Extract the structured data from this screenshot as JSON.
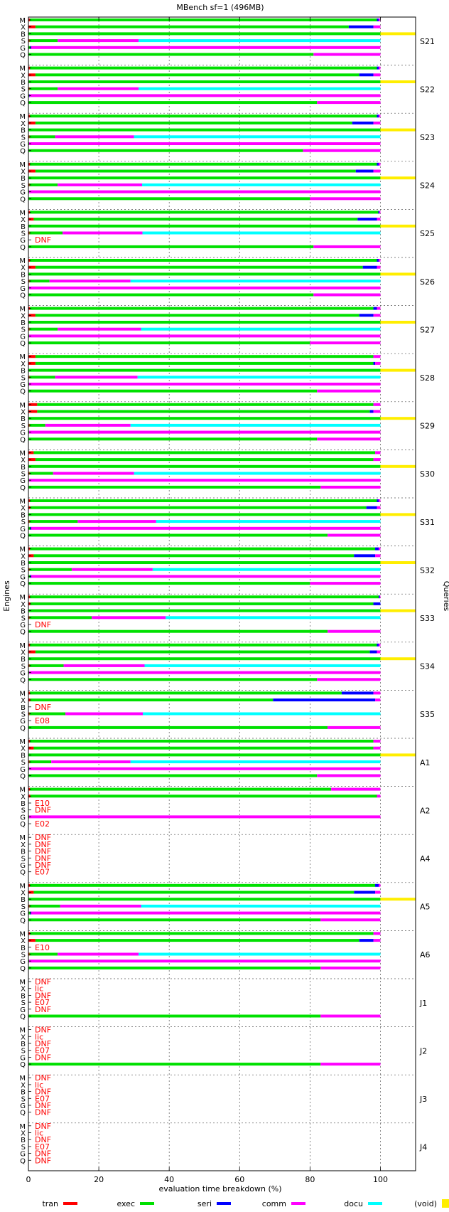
{
  "chart_data": {
    "type": "bar",
    "orientation": "horizontal-stacked",
    "title": "MBench sf=1 (496MB)",
    "xlabel": "evaluation time breakdown (%)",
    "ylabel_left": "Engines",
    "ylabel_right": "Queries",
    "xlim": [
      0,
      110
    ],
    "xticks": [
      0,
      20,
      40,
      60,
      80,
      100
    ],
    "grid": true,
    "legend_position": "bottom",
    "engine_labels": [
      "M",
      "X",
      "B",
      "S",
      "G",
      "Q"
    ],
    "components": [
      {
        "key": "tran",
        "label": "tran",
        "color": "#ff0000"
      },
      {
        "key": "exec",
        "label": "exec",
        "color": "#00e000"
      },
      {
        "key": "seri",
        "label": "seri",
        "color": "#0000ff"
      },
      {
        "key": "comm",
        "label": "comm",
        "color": "#ff00ff"
      },
      {
        "key": "docu",
        "label": "docu",
        "color": "#00ffff"
      },
      {
        "key": "void",
        "label": "(void)",
        "color": "#ffee00"
      }
    ],
    "void_range": [
      100,
      110
    ],
    "queries": [
      {
        "name": "S21",
        "rows": {
          "M": [
            0.4,
            98.6,
            0.5,
            0.5,
            0,
            0
          ],
          "X": [
            2,
            89,
            7,
            2,
            0,
            0
          ],
          "B": [
            0,
            100,
            0,
            0,
            0,
            10
          ],
          "S": [
            0.3,
            8,
            0,
            23,
            68.7,
            0
          ],
          "G": [
            0,
            0.5,
            0.3,
            99.2,
            0,
            0
          ],
          "Q": [
            0,
            81,
            0,
            19,
            0,
            0
          ]
        }
      },
      {
        "name": "S22",
        "rows": {
          "M": [
            0.4,
            98.6,
            0.5,
            0.5,
            0,
            0
          ],
          "X": [
            2,
            92,
            4,
            2,
            0,
            0
          ],
          "B": [
            0,
            100,
            0,
            0,
            0,
            10
          ],
          "S": [
            0.3,
            8,
            0,
            23,
            68.7,
            0
          ],
          "G": [
            0,
            0.2,
            0.1,
            99.7,
            0,
            0
          ],
          "Q": [
            0,
            82,
            0,
            18,
            0,
            0
          ]
        }
      },
      {
        "name": "S23",
        "rows": {
          "M": [
            0.4,
            98.6,
            0.5,
            0.5,
            0,
            0
          ],
          "X": [
            2,
            90,
            6,
            2,
            0,
            0
          ],
          "B": [
            0,
            100,
            0,
            0,
            0,
            10
          ],
          "S": [
            0.3,
            7.3,
            0,
            22.4,
            70,
            0
          ],
          "G": [
            0,
            0.2,
            0,
            99.8,
            0,
            0
          ],
          "Q": [
            0,
            78,
            0,
            22,
            0,
            0
          ]
        }
      },
      {
        "name": "S24",
        "rows": {
          "M": [
            0.4,
            98.6,
            0.5,
            0.5,
            0,
            0
          ],
          "X": [
            2,
            91,
            5,
            2,
            0,
            0
          ],
          "B": [
            0,
            100,
            0,
            0,
            0,
            10
          ],
          "S": [
            0.3,
            8,
            0,
            24,
            67.7,
            0
          ],
          "G": [
            0,
            0.2,
            0,
            99.8,
            0,
            0
          ],
          "Q": [
            0,
            80,
            0,
            20,
            0,
            0
          ]
        }
      },
      {
        "name": "S25",
        "rows": {
          "M": [
            0.4,
            99,
            0.3,
            0.3,
            0,
            0
          ],
          "X": [
            1.5,
            92,
            5.5,
            1,
            0,
            0
          ],
          "B": [
            0,
            100,
            0,
            0,
            0,
            10
          ],
          "S": [
            0.3,
            9.4,
            0,
            22.7,
            67.6,
            0
          ],
          "G": null,
          "Q": [
            0,
            81,
            0,
            19,
            0,
            0
          ]
        }
      },
      {
        "name": "S26",
        "rows": {
          "M": [
            0.4,
            98.6,
            0.5,
            0.5,
            0,
            0
          ],
          "X": [
            2,
            93,
            4,
            1,
            0,
            0
          ],
          "B": [
            0,
            100,
            0,
            0,
            0,
            10
          ],
          "S": [
            0.3,
            5.7,
            0,
            23,
            71,
            0
          ],
          "G": [
            0,
            0.2,
            0,
            99.8,
            0,
            0
          ],
          "Q": [
            0,
            81,
            0,
            19,
            0,
            0
          ]
        }
      },
      {
        "name": "S27",
        "rows": {
          "M": [
            0.4,
            97.6,
            1,
            1,
            0,
            0
          ],
          "X": [
            2,
            92,
            4,
            2,
            0,
            0
          ],
          "B": [
            0,
            100,
            0,
            0,
            0,
            10
          ],
          "S": [
            0.3,
            8,
            0,
            23.7,
            68,
            0
          ],
          "G": [
            0,
            0.2,
            0,
            99.8,
            0,
            0
          ],
          "Q": [
            0,
            80,
            0,
            20,
            0,
            0
          ]
        }
      },
      {
        "name": "S28",
        "rows": {
          "M": [
            2,
            96,
            0,
            2,
            0,
            0
          ],
          "X": [
            2,
            96,
            0.5,
            1.5,
            0,
            0
          ],
          "B": [
            0,
            100,
            0,
            0,
            0,
            10
          ],
          "S": [
            0.3,
            7.3,
            0,
            23.4,
            69,
            0
          ],
          "G": [
            0,
            0.2,
            0,
            99.8,
            0,
            0
          ],
          "Q": [
            0,
            82,
            0,
            18,
            0,
            0
          ]
        }
      },
      {
        "name": "S29",
        "rows": {
          "M": [
            2.5,
            95.5,
            0,
            2,
            0,
            0
          ],
          "X": [
            2.5,
            94.5,
            1,
            2,
            0,
            0
          ],
          "B": [
            0,
            100,
            0,
            0,
            0,
            10
          ],
          "S": [
            0.3,
            4.5,
            0,
            24.2,
            71,
            0
          ],
          "G": [
            0,
            0.2,
            0,
            99.8,
            0,
            0
          ],
          "Q": [
            0,
            82,
            0,
            18,
            0,
            0
          ]
        }
      },
      {
        "name": "S30",
        "rows": {
          "M": [
            1.5,
            97,
            0,
            1.5,
            0,
            0
          ],
          "X": [
            2,
            96,
            0,
            2,
            0,
            0
          ],
          "B": [
            0,
            100,
            0,
            0,
            0,
            10
          ],
          "S": [
            0.3,
            6.7,
            0,
            23,
            70,
            0
          ],
          "G": [
            0,
            0.2,
            0,
            99.8,
            0,
            0
          ],
          "Q": [
            0,
            83,
            0,
            17,
            0,
            0
          ]
        }
      },
      {
        "name": "S31",
        "rows": {
          "M": [
            0.4,
            98.6,
            0.5,
            0.5,
            0,
            0
          ],
          "X": [
            0.5,
            95.5,
            3,
            1,
            0,
            0
          ],
          "B": [
            0,
            100,
            0,
            0,
            0,
            10
          ],
          "S": [
            0.3,
            13.7,
            0,
            22.3,
            63.7,
            0
          ],
          "G": [
            0,
            0.5,
            0.3,
            99.2,
            0,
            0
          ],
          "Q": [
            0,
            85,
            0,
            15,
            0,
            0
          ]
        }
      },
      {
        "name": "S32",
        "rows": {
          "M": [
            0.4,
            98.1,
            1,
            0.5,
            0,
            0
          ],
          "X": [
            1.5,
            91,
            6,
            1.5,
            0,
            0
          ],
          "B": [
            0,
            100,
            0,
            0,
            0,
            10
          ],
          "S": [
            0.3,
            12,
            0,
            23,
            64.7,
            0
          ],
          "G": [
            0,
            0.5,
            0.3,
            99.2,
            0,
            0
          ],
          "Q": [
            0,
            80,
            0,
            20,
            0,
            0
          ]
        }
      },
      {
        "name": "S33",
        "rows": {
          "M": [
            0.4,
            99.1,
            0.3,
            0.2,
            0,
            0
          ],
          "X": [
            0.5,
            97.5,
            2,
            0,
            0,
            0
          ],
          "B": [
            0,
            100,
            0,
            0,
            0,
            10
          ],
          "S": [
            0.3,
            17.7,
            0,
            21,
            61,
            0
          ],
          "G": null,
          "Q": [
            0,
            85,
            0,
            15,
            0,
            0
          ]
        }
      },
      {
        "name": "S34",
        "rows": {
          "M": [
            0.4,
            98.6,
            0.5,
            0.5,
            0,
            0
          ],
          "X": [
            2,
            95,
            2,
            1,
            0,
            0
          ],
          "B": [
            0,
            100,
            0,
            0,
            0,
            10
          ],
          "S": [
            0.3,
            9.7,
            0,
            23,
            67,
            0
          ],
          "G": [
            0,
            0.2,
            0,
            99.8,
            0,
            0
          ],
          "Q": [
            0,
            82,
            0,
            18,
            0,
            0
          ]
        }
      },
      {
        "name": "S35",
        "rows": {
          "M": [
            0.4,
            88.6,
            9,
            2,
            0,
            0
          ],
          "X": [
            0.5,
            69,
            29,
            1.5,
            0,
            0
          ],
          "B": null,
          "S": [
            0.3,
            10.2,
            0,
            22,
            67.5,
            0
          ],
          "G": null,
          "Q": [
            0,
            85,
            0,
            15,
            0,
            0
          ]
        }
      },
      {
        "name": "A1",
        "rows": {
          "M": [
            0.4,
            97.6,
            0,
            2,
            0,
            0
          ],
          "X": [
            1.5,
            96.5,
            0,
            2,
            0,
            0
          ],
          "B": [
            0,
            100,
            0,
            0,
            0,
            10
          ],
          "S": [
            0.3,
            6.2,
            0,
            22.5,
            71,
            0
          ],
          "G": [
            0,
            0.2,
            0,
            99.8,
            0,
            0
          ],
          "Q": [
            0,
            82,
            0,
            18,
            0,
            0
          ]
        }
      },
      {
        "name": "A2",
        "rows": {
          "M": [
            0.4,
            85.6,
            0,
            14,
            0,
            0
          ],
          "X": [
            0.5,
            98.5,
            0,
            1,
            0,
            0
          ],
          "B": null,
          "S": null,
          "G": [
            0,
            0.2,
            0,
            99.8,
            0,
            0
          ],
          "Q": null
        }
      },
      {
        "name": "A4",
        "rows": {
          "M": null,
          "X": null,
          "B": null,
          "S": null,
          "G": null,
          "Q": null
        }
      },
      {
        "name": "A5",
        "rows": {
          "M": [
            0.4,
            98.1,
            1,
            0.5,
            0,
            0
          ],
          "X": [
            1.5,
            91,
            6,
            1.5,
            0,
            0
          ],
          "B": [
            0,
            100,
            0,
            0,
            0,
            10
          ],
          "S": [
            0.3,
            8.7,
            0,
            23,
            68,
            0
          ],
          "G": [
            0,
            0.5,
            0.3,
            99.2,
            0,
            0
          ],
          "Q": [
            0,
            83,
            0,
            17,
            0,
            0
          ]
        }
      },
      {
        "name": "A6",
        "rows": {
          "M": [
            0.4,
            97.6,
            0,
            2,
            0,
            0
          ],
          "X": [
            2,
            92,
            4,
            2,
            0,
            0
          ],
          "B": null,
          "S": [
            0.3,
            8,
            0,
            23,
            68.7,
            0
          ],
          "G": [
            0,
            0.2,
            0,
            99.8,
            0,
            0
          ],
          "Q": [
            0,
            83,
            0,
            17,
            0,
            0
          ]
        }
      },
      {
        "name": "J1",
        "rows": {
          "M": null,
          "X": null,
          "B": null,
          "S": null,
          "G": null,
          "Q": [
            0,
            83,
            0,
            17,
            0,
            0
          ]
        }
      },
      {
        "name": "J2",
        "rows": {
          "M": null,
          "X": null,
          "B": null,
          "S": null,
          "G": null,
          "Q": [
            0,
            83,
            0,
            17,
            0,
            0
          ]
        }
      },
      {
        "name": "J3",
        "rows": {
          "M": null,
          "X": null,
          "B": null,
          "S": null,
          "G": null,
          "Q": null
        }
      },
      {
        "name": "J4",
        "rows": {
          "M": null,
          "X": null,
          "B": null,
          "S": null,
          "G": null,
          "Q": null
        }
      }
    ],
    "annotations": [
      {
        "query": "S25",
        "engine": "G",
        "text": "DNF"
      },
      {
        "query": "S33",
        "engine": "G",
        "text": "DNF"
      },
      {
        "query": "S35",
        "engine": "B",
        "text": "DNF"
      },
      {
        "query": "S35",
        "engine": "G",
        "text": "E08"
      },
      {
        "query": "A2",
        "engine": "B",
        "text": "E10"
      },
      {
        "query": "A2",
        "engine": "S",
        "text": "DNF"
      },
      {
        "query": "A2",
        "engine": "Q",
        "text": "E02"
      },
      {
        "query": "A4",
        "engine": "M",
        "text": "DNF"
      },
      {
        "query": "A4",
        "engine": "X",
        "text": "DNF"
      },
      {
        "query": "A4",
        "engine": "B",
        "text": "DNF"
      },
      {
        "query": "A4",
        "engine": "S",
        "text": "DNF"
      },
      {
        "query": "A4",
        "engine": "G",
        "text": "DNF"
      },
      {
        "query": "A4",
        "engine": "Q",
        "text": "E07"
      },
      {
        "query": "A6",
        "engine": "B",
        "text": "E10"
      },
      {
        "query": "J1",
        "engine": "M",
        "text": "DNF"
      },
      {
        "query": "J1",
        "engine": "X",
        "text": "lic"
      },
      {
        "query": "J1",
        "engine": "B",
        "text": "DNF"
      },
      {
        "query": "J1",
        "engine": "S",
        "text": "E07"
      },
      {
        "query": "J1",
        "engine": "G",
        "text": "DNF"
      },
      {
        "query": "J2",
        "engine": "M",
        "text": "DNF"
      },
      {
        "query": "J2",
        "engine": "X",
        "text": "lic"
      },
      {
        "query": "J2",
        "engine": "B",
        "text": "DNF"
      },
      {
        "query": "J2",
        "engine": "S",
        "text": "E07"
      },
      {
        "query": "J2",
        "engine": "G",
        "text": "DNF"
      },
      {
        "query": "J3",
        "engine": "M",
        "text": "DNF"
      },
      {
        "query": "J3",
        "engine": "X",
        "text": "lic"
      },
      {
        "query": "J3",
        "engine": "B",
        "text": "DNF"
      },
      {
        "query": "J3",
        "engine": "S",
        "text": "E07"
      },
      {
        "query": "J3",
        "engine": "G",
        "text": "DNF"
      },
      {
        "query": "J3",
        "engine": "Q",
        "text": "DNF"
      },
      {
        "query": "J4",
        "engine": "M",
        "text": "DNF"
      },
      {
        "query": "J4",
        "engine": "X",
        "text": "lic"
      },
      {
        "query": "J4",
        "engine": "B",
        "text": "DNF"
      },
      {
        "query": "J4",
        "engine": "S",
        "text": "E07"
      },
      {
        "query": "J4",
        "engine": "G",
        "text": "DNF"
      },
      {
        "query": "J4",
        "engine": "Q",
        "text": "DNF"
      }
    ]
  }
}
